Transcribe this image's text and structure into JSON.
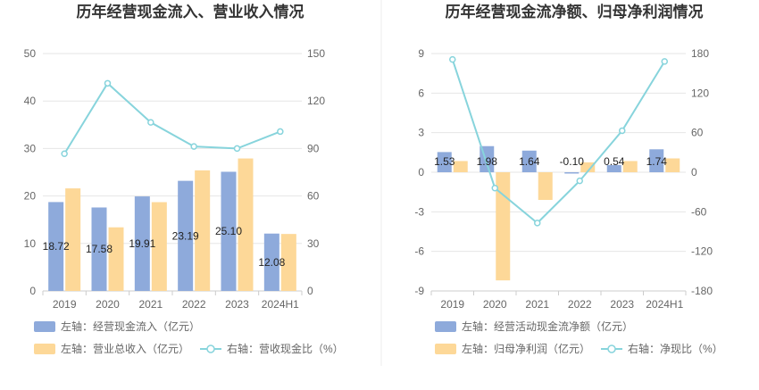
{
  "colors": {
    "bar_primary": "#8eaadb",
    "bar_secondary": "#fdd898",
    "line": "#87d4dc",
    "grid": "#e6e6e6",
    "axis": "#cccccc",
    "divider": "#eeeeee"
  },
  "chart_data": [
    {
      "type": "bar+line",
      "title": "历年经营现金流入、营业收入情况",
      "categories": [
        "2019",
        "2020",
        "2021",
        "2022",
        "2023",
        "2024H1"
      ],
      "left_axis": {
        "min": 0,
        "max": 50,
        "ticks": [
          "0",
          "10",
          "20",
          "30",
          "40",
          "50"
        ]
      },
      "right_axis": {
        "min": 0,
        "max": 150,
        "ticks": [
          "0",
          "30",
          "60",
          "90",
          "120",
          "150"
        ]
      },
      "series": [
        {
          "name": "左轴：经营现金流入（亿元）",
          "kind": "bar",
          "axis": "left",
          "values": [
            18.72,
            17.58,
            19.91,
            23.19,
            25.1,
            12.08
          ],
          "labels": [
            "18.72",
            "17.58",
            "19.91",
            "23.19",
            "25.10",
            "12.08"
          ]
        },
        {
          "name": "左轴：营业总收入（亿元）",
          "kind": "bar",
          "axis": "left",
          "values": [
            21.6,
            13.4,
            18.7,
            25.4,
            27.9,
            12.0
          ]
        },
        {
          "name": "右轴：营收现金比（%）",
          "kind": "line",
          "axis": "right",
          "values": [
            86.7,
            131.2,
            106.5,
            91.3,
            90.0,
            100.7
          ]
        }
      ]
    },
    {
      "type": "bar+line",
      "title": "历年经营现金流净额、归母净利润情况",
      "categories": [
        "2019",
        "2020",
        "2021",
        "2022",
        "2023",
        "2024H1"
      ],
      "left_axis": {
        "min": -9,
        "max": 9,
        "ticks": [
          "-9",
          "-6",
          "-3",
          "0",
          "3",
          "6",
          "9"
        ]
      },
      "right_axis": {
        "min": -180,
        "max": 180,
        "ticks": [
          "-180",
          "-120",
          "-60",
          "0",
          "60",
          "120",
          "180"
        ]
      },
      "series": [
        {
          "name": "左轴：经营活动现金流净额（亿元）",
          "kind": "bar",
          "axis": "left",
          "values": [
            1.53,
            1.98,
            1.64,
            -0.1,
            0.54,
            1.74
          ],
          "labels": [
            "1.53",
            "1.98",
            "1.64",
            "-0.10",
            "0.54",
            "1.74"
          ]
        },
        {
          "name": "左轴：归母净利润（亿元）",
          "kind": "bar",
          "axis": "left",
          "values": [
            0.85,
            -8.2,
            -2.1,
            0.75,
            0.85,
            1.05
          ]
        },
        {
          "name": "右轴：净现比（%）",
          "kind": "line",
          "axis": "right",
          "values": [
            171,
            -24,
            -77,
            -13,
            63,
            168
          ]
        }
      ]
    }
  ]
}
